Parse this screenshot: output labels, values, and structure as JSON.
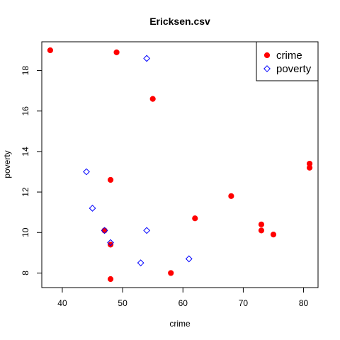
{
  "chart_data": {
    "type": "scatter",
    "title": "Ericksen.csv",
    "xlabel": "crime",
    "ylabel": "poverty",
    "xlim": [
      36.6,
      82.4
    ],
    "ylim": [
      7.28,
      19.42
    ],
    "x_ticks": [
      40,
      50,
      60,
      70,
      80
    ],
    "y_ticks": [
      8,
      10,
      12,
      14,
      16,
      18
    ],
    "grid": false,
    "legend_position": "top-right",
    "series": [
      {
        "name": "crime",
        "marker": "filled-circle",
        "color": "#ff0000",
        "points": [
          {
            "x": 38,
            "y": 19.0
          },
          {
            "x": 49,
            "y": 18.9
          },
          {
            "x": 55,
            "y": 16.6
          },
          {
            "x": 81,
            "y": 13.4
          },
          {
            "x": 81,
            "y": 13.2
          },
          {
            "x": 48,
            "y": 12.6
          },
          {
            "x": 68,
            "y": 11.8
          },
          {
            "x": 62,
            "y": 10.7
          },
          {
            "x": 73,
            "y": 10.4
          },
          {
            "x": 73,
            "y": 10.1
          },
          {
            "x": 75,
            "y": 9.9
          },
          {
            "x": 47,
            "y": 10.1
          },
          {
            "x": 48,
            "y": 9.4
          },
          {
            "x": 58,
            "y": 8.0
          },
          {
            "x": 48,
            "y": 7.7
          }
        ]
      },
      {
        "name": "poverty",
        "marker": "open-diamond",
        "color": "#0000ff",
        "points": [
          {
            "x": 54,
            "y": 18.6
          },
          {
            "x": 44,
            "y": 13.0
          },
          {
            "x": 45,
            "y": 11.2
          },
          {
            "x": 47,
            "y": 10.1
          },
          {
            "x": 54,
            "y": 10.1
          },
          {
            "x": 48,
            "y": 9.5
          },
          {
            "x": 61,
            "y": 8.7
          },
          {
            "x": 53,
            "y": 8.5
          }
        ]
      }
    ]
  }
}
